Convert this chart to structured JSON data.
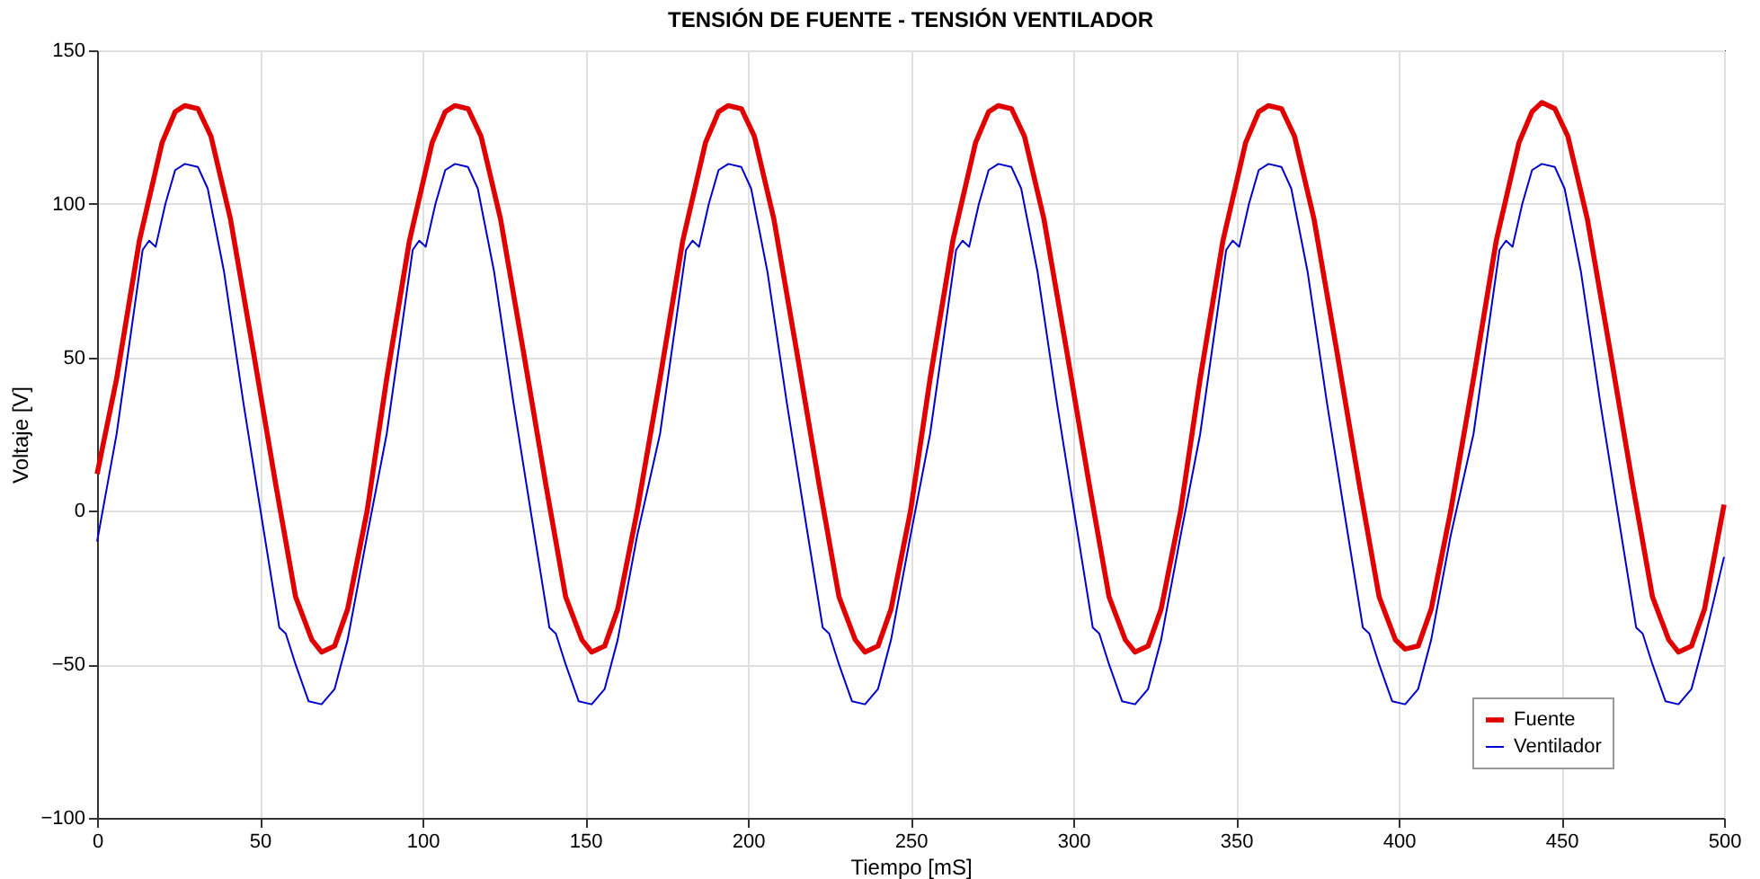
{
  "chart_data": {
    "type": "line",
    "title": "TENSIÓN DE FUENTE - TENSIÓN VENTILADOR",
    "xlabel": "Tiempo [mS]",
    "ylabel": "Voltaje [V]",
    "xlim": [
      0,
      500
    ],
    "xticks": [
      0,
      50,
      100,
      150,
      200,
      250,
      300,
      350,
      400,
      450,
      500
    ],
    "ylim": [
      -100,
      150
    ],
    "yticks": [
      -100,
      -50,
      0,
      50,
      100,
      150
    ],
    "grid": true,
    "legend": "bottom right",
    "line_style": "solid",
    "marker": "none",
    "series": [
      {
        "name": "Fuente",
        "color": "#e00000",
        "x": [
          0,
          6,
          13,
          20,
          24,
          27,
          31,
          35,
          41,
          48,
          55,
          61,
          66,
          69,
          73,
          77,
          83,
          89,
          96,
          103,
          107,
          110,
          114,
          118,
          124,
          131,
          138,
          144,
          149,
          152,
          156,
          160,
          166,
          173,
          180,
          187,
          191,
          194,
          198,
          202,
          208,
          215,
          222,
          228,
          233,
          236,
          240,
          244,
          250,
          256,
          263,
          270,
          274,
          277,
          281,
          285,
          291,
          298,
          305,
          311,
          316,
          319,
          323,
          327,
          333,
          339,
          346,
          353,
          357,
          360,
          364,
          368,
          374,
          381,
          388,
          394,
          399,
          402,
          406,
          410,
          416,
          423,
          430,
          437,
          441,
          444,
          448,
          452,
          458,
          465,
          472,
          478,
          483,
          486,
          490,
          494,
          500
        ],
        "values": [
          12,
          43,
          88,
          120,
          130,
          132,
          131,
          122,
          95,
          52,
          8,
          -28,
          -42,
          -46,
          -44,
          -32,
          0,
          43,
          88,
          120,
          130,
          132,
          131,
          122,
          95,
          52,
          8,
          -28,
          -42,
          -46,
          -44,
          -32,
          0,
          43,
          88,
          120,
          130,
          132,
          131,
          122,
          95,
          52,
          8,
          -28,
          -42,
          -46,
          -44,
          -32,
          0,
          43,
          88,
          120,
          130,
          132,
          131,
          122,
          95,
          52,
          8,
          -28,
          -42,
          -46,
          -44,
          -32,
          0,
          43,
          88,
          120,
          130,
          132,
          131,
          122,
          95,
          52,
          8,
          -28,
          -42,
          -45,
          -44,
          -32,
          0,
          43,
          88,
          120,
          130,
          133,
          131,
          122,
          95,
          52,
          8,
          -28,
          -42,
          -46,
          -44,
          -32,
          2
        ]
      },
      {
        "name": "Ventilador",
        "color": "#0000cc",
        "x": [
          0,
          6,
          10,
          14,
          16,
          18,
          21,
          24,
          27,
          31,
          34,
          39,
          45,
          51,
          56,
          58,
          61,
          65,
          69,
          73,
          77,
          83,
          89,
          93,
          97,
          99,
          101,
          104,
          107,
          110,
          114,
          117,
          122,
          128,
          134,
          139,
          141,
          144,
          148,
          152,
          156,
          160,
          166,
          173,
          177,
          181,
          183,
          185,
          188,
          191,
          194,
          198,
          201,
          206,
          212,
          218,
          223,
          225,
          228,
          232,
          236,
          240,
          244,
          250,
          256,
          260,
          264,
          266,
          268,
          271,
          274,
          277,
          281,
          284,
          289,
          295,
          301,
          306,
          308,
          311,
          315,
          319,
          323,
          327,
          333,
          339,
          343,
          347,
          349,
          351,
          354,
          357,
          360,
          364,
          367,
          372,
          378,
          384,
          389,
          391,
          394,
          398,
          402,
          406,
          410,
          416,
          423,
          427,
          431,
          433,
          435,
          438,
          441,
          444,
          448,
          451,
          456,
          462,
          468,
          473,
          475,
          478,
          482,
          486,
          490,
          494,
          500
        ],
        "values": [
          -10,
          25,
          55,
          85,
          88,
          86,
          100,
          111,
          113,
          112,
          105,
          78,
          35,
          -5,
          -38,
          -40,
          -50,
          -62,
          -63,
          -58,
          -42,
          -8,
          25,
          55,
          85,
          88,
          86,
          100,
          111,
          113,
          112,
          105,
          78,
          35,
          -5,
          -38,
          -40,
          -50,
          -62,
          -63,
          -58,
          -42,
          -8,
          25,
          55,
          85,
          88,
          86,
          100,
          111,
          113,
          112,
          105,
          78,
          35,
          -5,
          -38,
          -40,
          -50,
          -62,
          -63,
          -58,
          -42,
          -8,
          25,
          55,
          85,
          88,
          86,
          100,
          111,
          113,
          112,
          105,
          78,
          35,
          -5,
          -38,
          -40,
          -50,
          -62,
          -63,
          -58,
          -42,
          -8,
          25,
          55,
          85,
          88,
          86,
          100,
          111,
          113,
          112,
          105,
          78,
          35,
          -5,
          -38,
          -40,
          -50,
          -62,
          -63,
          -58,
          -42,
          -8,
          25,
          55,
          85,
          88,
          86,
          100,
          111,
          113,
          112,
          105,
          78,
          35,
          -5,
          -38,
          -40,
          -50,
          -62,
          -63,
          -58,
          -42,
          -15
        ]
      }
    ]
  }
}
